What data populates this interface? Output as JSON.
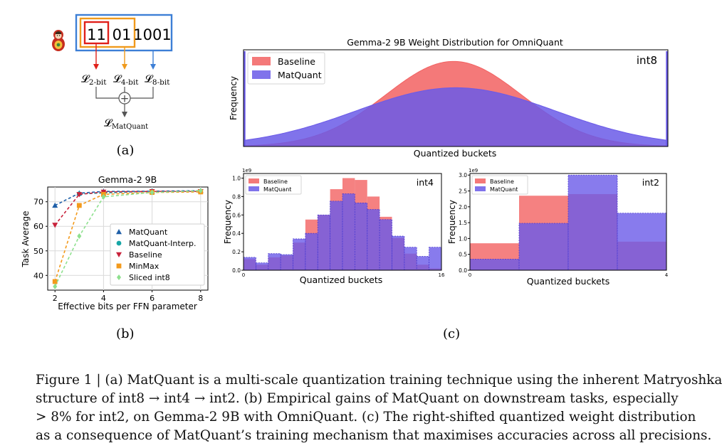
{
  "panel_a": {
    "bits": [
      "11",
      "01",
      "1001"
    ],
    "losses": [
      {
        "main": "𝓛",
        "sub": "2-bit",
        "color": "#e0201a"
      },
      {
        "main": "𝓛",
        "sub": "4-bit",
        "color": "#f09a1c"
      },
      {
        "main": "𝓛",
        "sub": "8-bit",
        "color": "#3d7fd6"
      }
    ],
    "combined": {
      "main": "𝓛",
      "sub": "MatQuant"
    },
    "plus_symbol": "+",
    "label": "(a)",
    "colors": {
      "int2_box": "#e0201a",
      "int4_box": "#f09a1c",
      "int8_box": "#3d7fd6"
    },
    "icon": "matryoshka-doll-icon"
  },
  "panel_b_label": "(b)",
  "panel_c_label": "(c)",
  "chart_data": [
    {
      "id": "b",
      "type": "line",
      "title": "Gemma-2 9B",
      "xlabel": "Effective bits per FFN parameter",
      "ylabel": "Task Average",
      "xlim": [
        1.7,
        8.3
      ],
      "ylim": [
        34,
        76
      ],
      "xticks": [
        2,
        4,
        6,
        8
      ],
      "yticks": [
        40,
        50,
        60,
        70
      ],
      "grid": true,
      "legend": "lower-right",
      "series": [
        {
          "name": "MatQuant",
          "marker": "triangle-up",
          "color": "#1f5fa8",
          "x": [
            2,
            3,
            4,
            6,
            8
          ],
          "y": [
            68.5,
            73.5,
            74.2,
            74.3,
            74.5
          ]
        },
        {
          "name": "MatQuant-Interp.",
          "marker": "circle",
          "color": "#17a6a6",
          "x": [
            3,
            6
          ],
          "y": [
            73.2,
            74.3
          ]
        },
        {
          "name": "Baseline",
          "marker": "triangle-down",
          "color": "#c8213a",
          "x": [
            2,
            3,
            4,
            6,
            8
          ],
          "y": [
            60.5,
            73.0,
            74.0,
            74.2,
            74.2
          ]
        },
        {
          "name": "MinMax",
          "marker": "square",
          "color": "#f39a1c",
          "x": [
            2,
            3,
            4,
            6,
            8
          ],
          "y": [
            37.5,
            68.5,
            73.0,
            73.8,
            74.0
          ]
        },
        {
          "name": "Sliced int8",
          "marker": "diamond",
          "color": "#8ee08e",
          "x": [
            2,
            3,
            4,
            6,
            8
          ],
          "y": [
            35.5,
            56.0,
            72.0,
            73.8,
            74.5
          ]
        }
      ]
    },
    {
      "id": "c-int8",
      "type": "area",
      "title": "Gemma-2 9B Weight Distribution for OmniQuant",
      "xlabel": "Quantized buckets",
      "ylabel": "Frequency",
      "annotation": "int8",
      "legend": "top-left",
      "series": [
        {
          "name": "Baseline",
          "color": "#f26262",
          "center": 0.495,
          "sigma": 0.16,
          "peak": 1.0
        },
        {
          "name": "MatQuant",
          "color": "#6a5ae8",
          "center": 0.5,
          "sigma": 0.235,
          "peak": 0.69
        }
      ]
    },
    {
      "id": "c-int4",
      "type": "bar",
      "title": "",
      "xlabel": "Quantized buckets",
      "ylabel": "Frequency",
      "annotation": "int4",
      "scale_note": "1e9",
      "legend": "top-left",
      "xlim": [
        0,
        16
      ],
      "xtick_labels": [
        "0",
        "16"
      ],
      "ylim": [
        0,
        1.05
      ],
      "yticks": [
        0.0,
        0.2,
        0.4,
        0.6,
        0.8,
        1.0
      ],
      "categories": [
        "0",
        "1",
        "2",
        "3",
        "4",
        "5",
        "6",
        "7",
        "8",
        "9",
        "10",
        "11",
        "12",
        "13",
        "14",
        "15"
      ],
      "series": [
        {
          "name": "Baseline",
          "color": "#f26262",
          "values": [
            0.12,
            0.06,
            0.14,
            0.16,
            0.3,
            0.55,
            0.6,
            0.88,
            1.0,
            0.98,
            0.8,
            0.58,
            0.35,
            0.18,
            0.06,
            0.02
          ]
        },
        {
          "name": "MatQuant",
          "color": "#6a5ae8",
          "values": [
            0.14,
            0.08,
            0.18,
            0.17,
            0.34,
            0.4,
            0.6,
            0.75,
            0.83,
            0.73,
            0.66,
            0.55,
            0.37,
            0.25,
            0.15,
            0.25
          ]
        }
      ]
    },
    {
      "id": "c-int2",
      "type": "bar",
      "title": "",
      "xlabel": "Quantized buckets",
      "ylabel": "Frequency",
      "annotation": "int2",
      "scale_note": "1e9",
      "legend": "top-left",
      "xlim": [
        0,
        4
      ],
      "xtick_labels": [
        "0",
        "4"
      ],
      "ylim": [
        0,
        3.05
      ],
      "yticks": [
        0.0,
        0.5,
        1.0,
        1.5,
        2.0,
        2.5,
        3.0
      ],
      "categories": [
        "0",
        "1",
        "2",
        "3"
      ],
      "series": [
        {
          "name": "Baseline",
          "color": "#f26262",
          "values": [
            0.85,
            2.35,
            2.4,
            0.9
          ]
        },
        {
          "name": "MatQuant",
          "color": "#6a5ae8",
          "values": [
            0.35,
            1.48,
            3.0,
            1.8
          ]
        }
      ]
    }
  ],
  "caption": {
    "lines": [
      "Figure 1 | (a) MatQuant is a multi-scale quantization training technique using the inherent Matryoshka",
      "structure of int8 → int4 → int2. (b) Empirical gains of MatQuant on downstream tasks, especially",
      "> 8% for int2, on Gemma-2 9B with OmniQuant. (c) The right-shifted quantized weight distribution",
      "as a consequence of MatQuant’s training mechanism that maximises accuracies across all precisions."
    ]
  }
}
